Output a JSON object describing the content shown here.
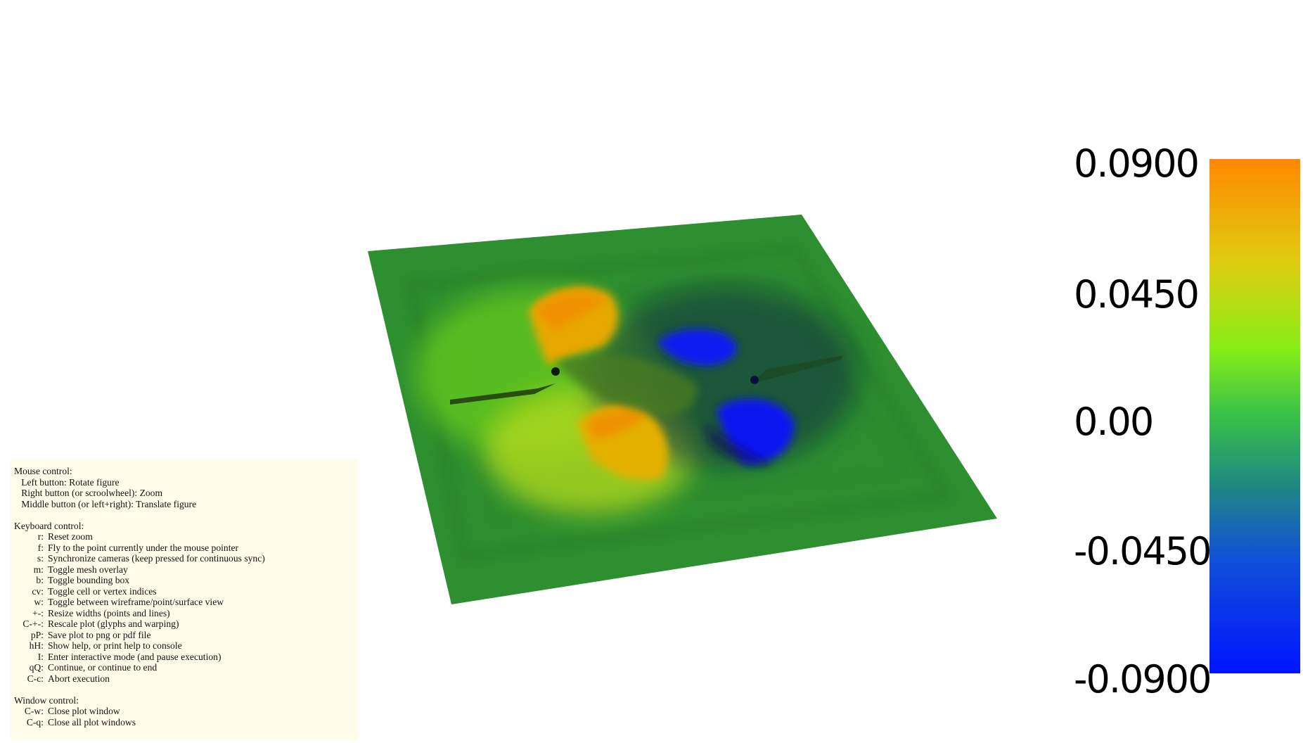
{
  "window": {
    "title": ""
  },
  "colorbar": {
    "labels": [
      "0.0900",
      "0.0450",
      "0.00",
      "-0.0450",
      "-0.0900"
    ],
    "gradient_stops": [
      {
        "pos": 0.0,
        "color": "#ff8800"
      },
      {
        "pos": 0.2,
        "color": "#e0cc10"
      },
      {
        "pos": 0.37,
        "color": "#88ee18"
      },
      {
        "pos": 0.5,
        "color": "#38c048"
      },
      {
        "pos": 0.63,
        "color": "#208a80"
      },
      {
        "pos": 0.78,
        "color": "#1050d8"
      },
      {
        "pos": 1.0,
        "color": "#0014ff"
      }
    ]
  },
  "surface": {
    "base_color": "#2d8f30",
    "positive_color": "#f09000",
    "negative_color": "#0a18f0"
  },
  "help": {
    "mouse": {
      "title": "Mouse control:",
      "items": [
        "Left button: Rotate figure",
        "Right button (or scroolwheel): Zoom",
        "Middle button (or left+right): Translate figure"
      ]
    },
    "keyboard": {
      "title": "Keyboard control:",
      "items": [
        {
          "key": "r:",
          "desc": "Reset zoom"
        },
        {
          "key": "f:",
          "desc": "Fly to the point currently under the mouse pointer"
        },
        {
          "key": "s:",
          "desc": "Synchronize cameras (keep pressed for continuous sync)"
        },
        {
          "key": "m:",
          "desc": "Toggle mesh overlay"
        },
        {
          "key": "b:",
          "desc": "Toggle bounding box"
        },
        {
          "key": "cv:",
          "desc": "Toggle cell or vertex indices"
        },
        {
          "key": "w:",
          "desc": "Toggle between wireframe/point/surface view"
        },
        {
          "key": "+-:",
          "desc": "Resize widths (points and lines)"
        },
        {
          "key": "C-+-:",
          "desc": "Rescale plot (glyphs and warping)"
        },
        {
          "key": "pP:",
          "desc": "Save plot to png or pdf file"
        },
        {
          "key": "hH:",
          "desc": "Show help, or print help to console"
        },
        {
          "key": "I:",
          "desc": "Enter interactive mode (and pause execution)"
        },
        {
          "key": "qQ:",
          "desc": "Continue, or continue to end"
        },
        {
          "key": "C-c:",
          "desc": "Abort execution"
        }
      ]
    },
    "window": {
      "title": "Window control:",
      "items": [
        {
          "key": "C-w:",
          "desc": "Close plot window"
        },
        {
          "key": "C-q:",
          "desc": "Close all plot windows"
        }
      ]
    }
  }
}
